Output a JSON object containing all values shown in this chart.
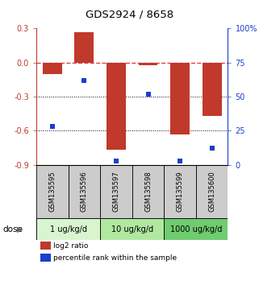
{
  "title": "GDS2924 / 8658",
  "samples": [
    "GSM135595",
    "GSM135596",
    "GSM135597",
    "GSM135598",
    "GSM135599",
    "GSM135600"
  ],
  "log2_ratio": [
    -0.1,
    0.27,
    -0.77,
    -0.02,
    -0.63,
    -0.47
  ],
  "percentile_rank": [
    28,
    62,
    3,
    52,
    3,
    12
  ],
  "bar_color": "#c0392b",
  "dot_color": "#1a3fcc",
  "left_ylim": [
    -0.9,
    0.3
  ],
  "left_yticks": [
    0.3,
    0.0,
    -0.3,
    -0.6,
    -0.9
  ],
  "right_ylim": [
    0,
    100
  ],
  "right_yticks": [
    100,
    75,
    50,
    25,
    0
  ],
  "right_yticklabels": [
    "100%",
    "75",
    "50",
    "25",
    "0"
  ],
  "dose_groups": [
    {
      "label": "1 ug/kg/d",
      "indices": [
        0,
        1
      ],
      "color": "#d8f5d0"
    },
    {
      "label": "10 ug/kg/d",
      "indices": [
        2,
        3
      ],
      "color": "#b0e8a0"
    },
    {
      "label": "1000 ug/kg/d",
      "indices": [
        4,
        5
      ],
      "color": "#70cc70"
    }
  ],
  "dose_label": "dose",
  "legend_items": [
    {
      "label": "log2 ratio",
      "color": "#c0392b"
    },
    {
      "label": "percentile rank within the sample",
      "color": "#1a3fcc"
    }
  ],
  "hline_y0_color": "#dd4444",
  "dotted_lines": [
    -0.3,
    -0.6
  ],
  "bar_width": 0.6,
  "sample_box_color": "#cccccc",
  "bar_border_color": "#333333"
}
